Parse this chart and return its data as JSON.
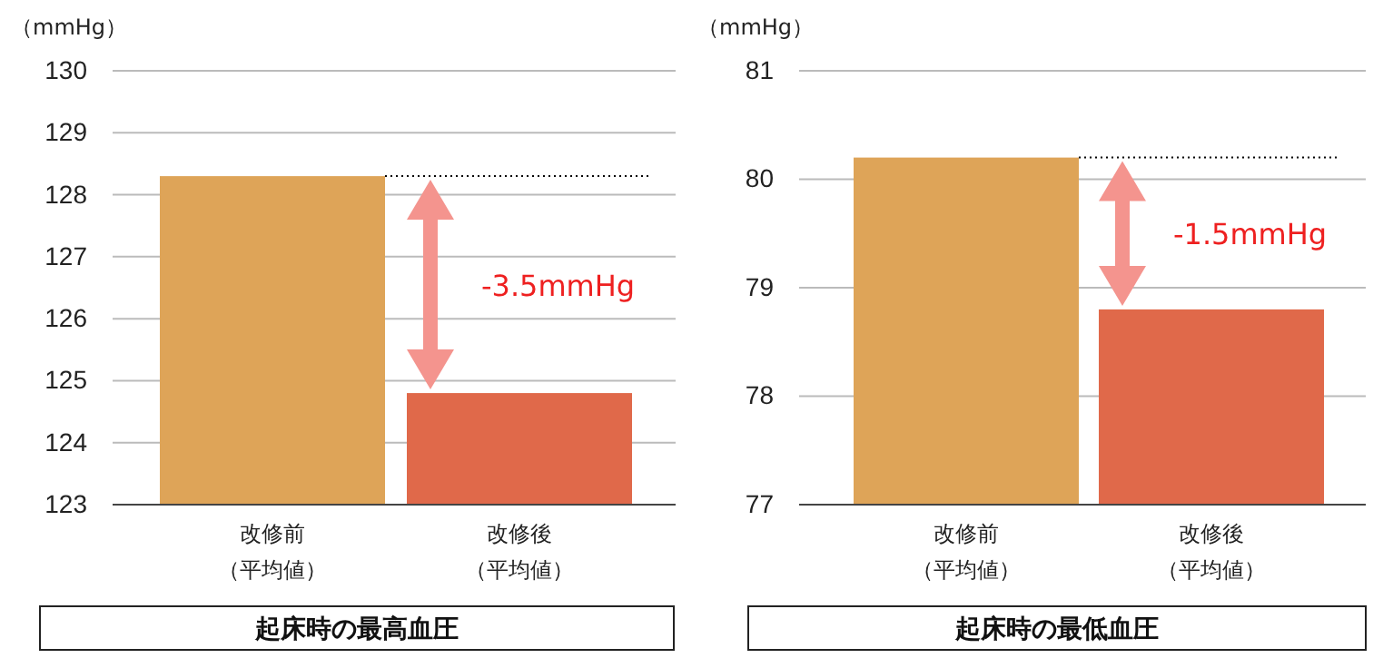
{
  "chart_data": [
    {
      "type": "bar",
      "title": "起床時の最高血圧",
      "ylabel": "（mmHg）",
      "categories": [
        "改修前（平均値）",
        "改修後（平均値）"
      ],
      "values": [
        128.3,
        124.8
      ],
      "colors": [
        "#dea458",
        "#e0694a"
      ],
      "ylim": [
        123,
        130
      ],
      "yticks": [
        123,
        124,
        125,
        126,
        127,
        128,
        129,
        130
      ],
      "grid": "y",
      "ref_lines": [
        {
          "axis": "y",
          "value": 128.3,
          "line_style": "dotted",
          "color": "#000000"
        }
      ],
      "annotations": [
        "-3.5mmHg"
      ]
    },
    {
      "type": "bar",
      "title": "起床時の最低血圧",
      "ylabel": "（mmHg）",
      "categories": [
        "改修前（平均値）",
        "改修後（平均値）"
      ],
      "values": [
        80.2,
        78.8
      ],
      "colors": [
        "#dea458",
        "#e0694a"
      ],
      "ylim": [
        77,
        81
      ],
      "yticks": [
        77,
        78,
        79,
        80,
        81
      ],
      "grid": "y",
      "ref_lines": [
        {
          "axis": "y",
          "value": 80.2,
          "line_style": "dotted",
          "color": "#000000"
        }
      ],
      "annotations": [
        "-1.5mmHg"
      ]
    }
  ]
}
